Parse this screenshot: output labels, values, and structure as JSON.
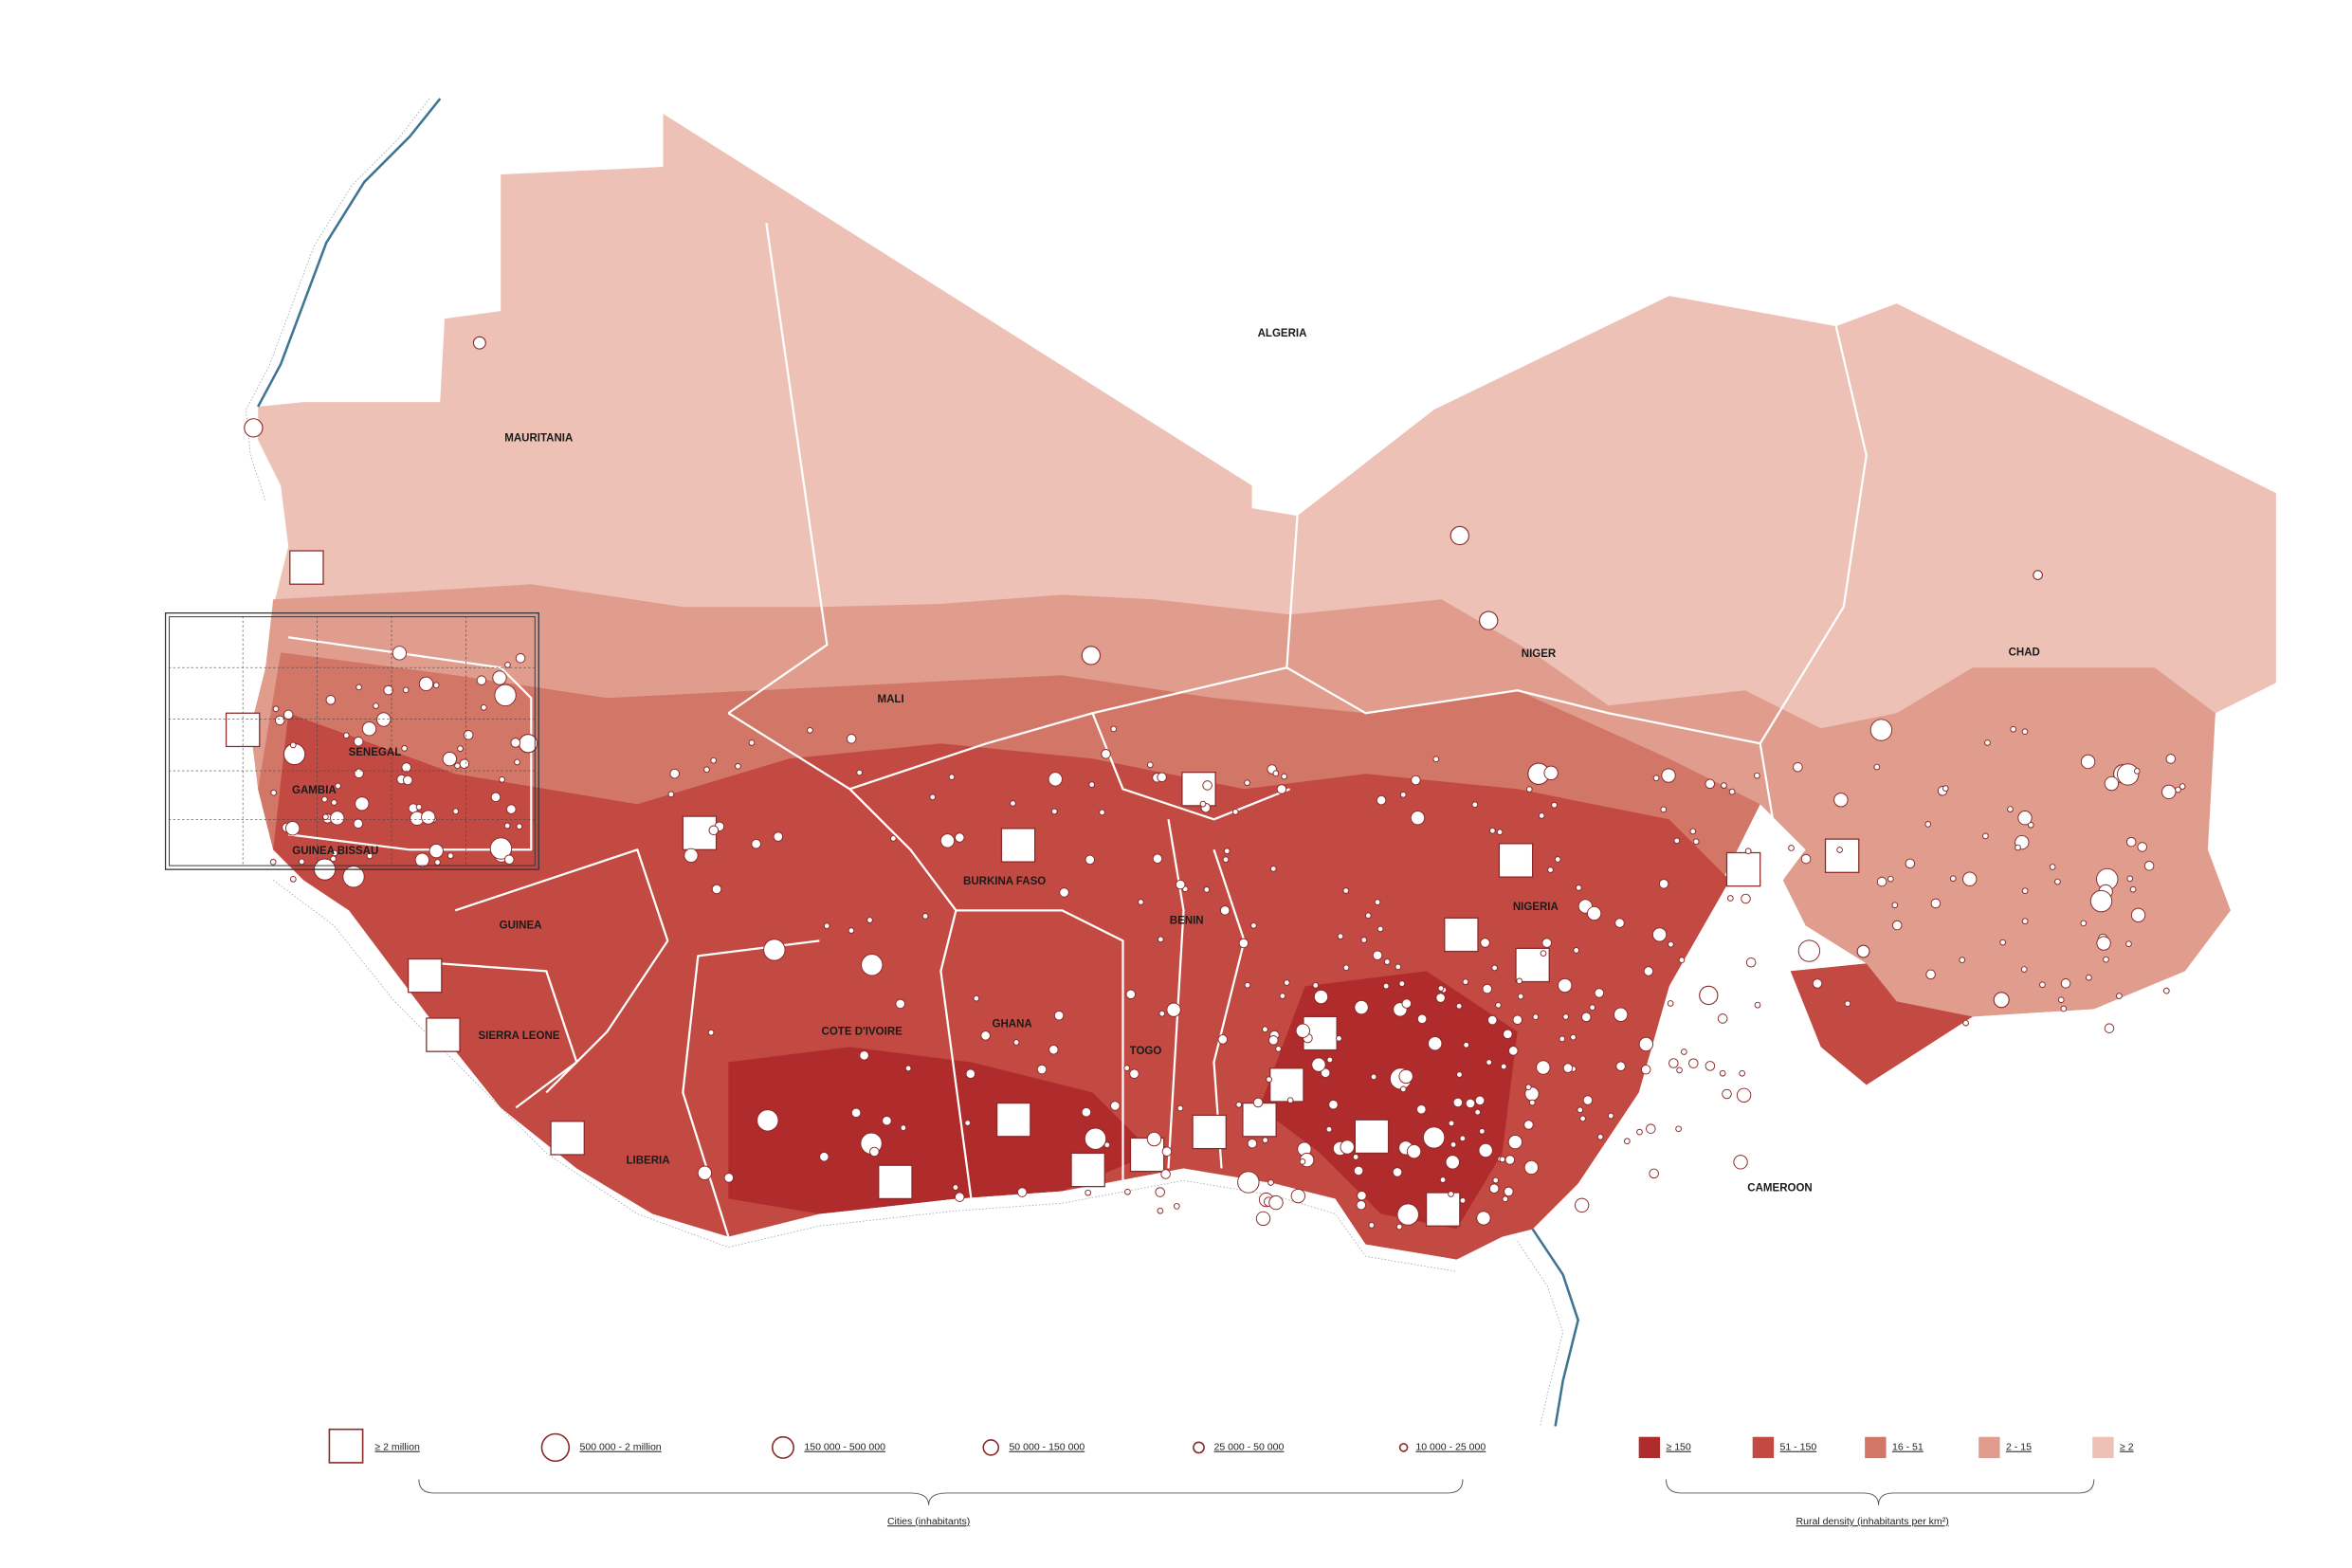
{
  "map": {
    "labels": [
      "ALGERIA",
      "MAURITANIA",
      "MALI",
      "NIGER",
      "CHAD",
      "SENEGAL",
      "GAMBIA",
      "GUINEA BISSAU",
      "GUINEA",
      "SIERRA LEONE",
      "LIBERIA",
      "COTE D'IVOIRE",
      "GHANA",
      "TOGO",
      "BENIN",
      "BURKINA FASO",
      "NIGERIA",
      "CAMEROON"
    ]
  },
  "legend": {
    "cities": {
      "title": "Cities (inhabitants)",
      "items": [
        "≥ 2 million",
        "500 000 - 2 million",
        "150 000 - 500 000",
        "50 000 - 150 000",
        "25 000 - 50 000",
        "10 000 - 25 000"
      ]
    },
    "density": {
      "title": "Rural density (inhabitants per km²)",
      "items": [
        {
          "label": "≥ 150",
          "color": "#b02b2b"
        },
        {
          "label": "51 - 150",
          "color": "#c34a42"
        },
        {
          "label": "16 - 51",
          "color": "#d27767"
        },
        {
          "label": "2 - 15",
          "color": "#e09d8d"
        },
        {
          "label": "≥ 2",
          "color": "#edc1b6"
        }
      ]
    }
  }
}
